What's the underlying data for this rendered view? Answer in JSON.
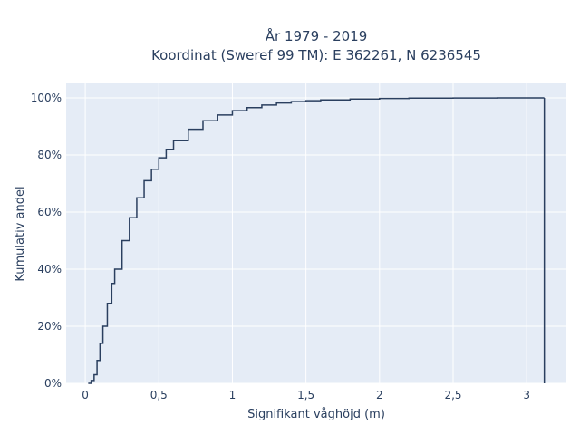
{
  "chart_data": {
    "type": "line",
    "title_line1": "År 1979 - 2019",
    "title_line2": "Koordinat (Sweref 99 TM): E 362261, N 6236545",
    "xlabel": "Signifikant våghöjd (m)",
    "ylabel": "Kumulativ andel",
    "xlim": [
      -0.13,
      3.27
    ],
    "ylim": [
      0,
      1.0
    ],
    "x_ticks": [
      {
        "value": 0,
        "label": "0"
      },
      {
        "value": 0.5,
        "label": "0,5"
      },
      {
        "value": 1,
        "label": "1"
      },
      {
        "value": 1.5,
        "label": "1,5"
      },
      {
        "value": 2,
        "label": "2"
      },
      {
        "value": 2.5,
        "label": "2,5"
      },
      {
        "value": 3,
        "label": "3"
      }
    ],
    "y_ticks": [
      {
        "value": 0,
        "label": "0%"
      },
      {
        "value": 0.2,
        "label": "20%"
      },
      {
        "value": 0.4,
        "label": "40%"
      },
      {
        "value": 0.6,
        "label": "60%"
      },
      {
        "value": 0.8,
        "label": "80%"
      },
      {
        "value": 1.0,
        "label": "100%"
      }
    ],
    "grid": true,
    "line_color": "#2a3f5f",
    "background_color": "#e5ecf6",
    "series": [
      {
        "x": [
          0.02,
          0.04,
          0.06,
          0.08,
          0.1,
          0.12,
          0.15,
          0.18,
          0.2,
          0.25,
          0.3,
          0.35,
          0.4,
          0.45,
          0.5,
          0.55,
          0.6,
          0.7,
          0.8,
          0.9,
          1.0,
          1.1,
          1.2,
          1.3,
          1.4,
          1.5,
          1.6,
          1.8,
          2.0,
          2.2,
          2.5,
          2.8,
          3.12,
          3.12
        ],
        "y": [
          0.0,
          0.01,
          0.03,
          0.08,
          0.14,
          0.2,
          0.28,
          0.35,
          0.4,
          0.5,
          0.58,
          0.65,
          0.71,
          0.75,
          0.79,
          0.82,
          0.85,
          0.89,
          0.92,
          0.94,
          0.955,
          0.966,
          0.975,
          0.982,
          0.987,
          0.99,
          0.993,
          0.996,
          0.998,
          0.999,
          0.9995,
          0.9999,
          1.0,
          0.0
        ]
      }
    ]
  }
}
